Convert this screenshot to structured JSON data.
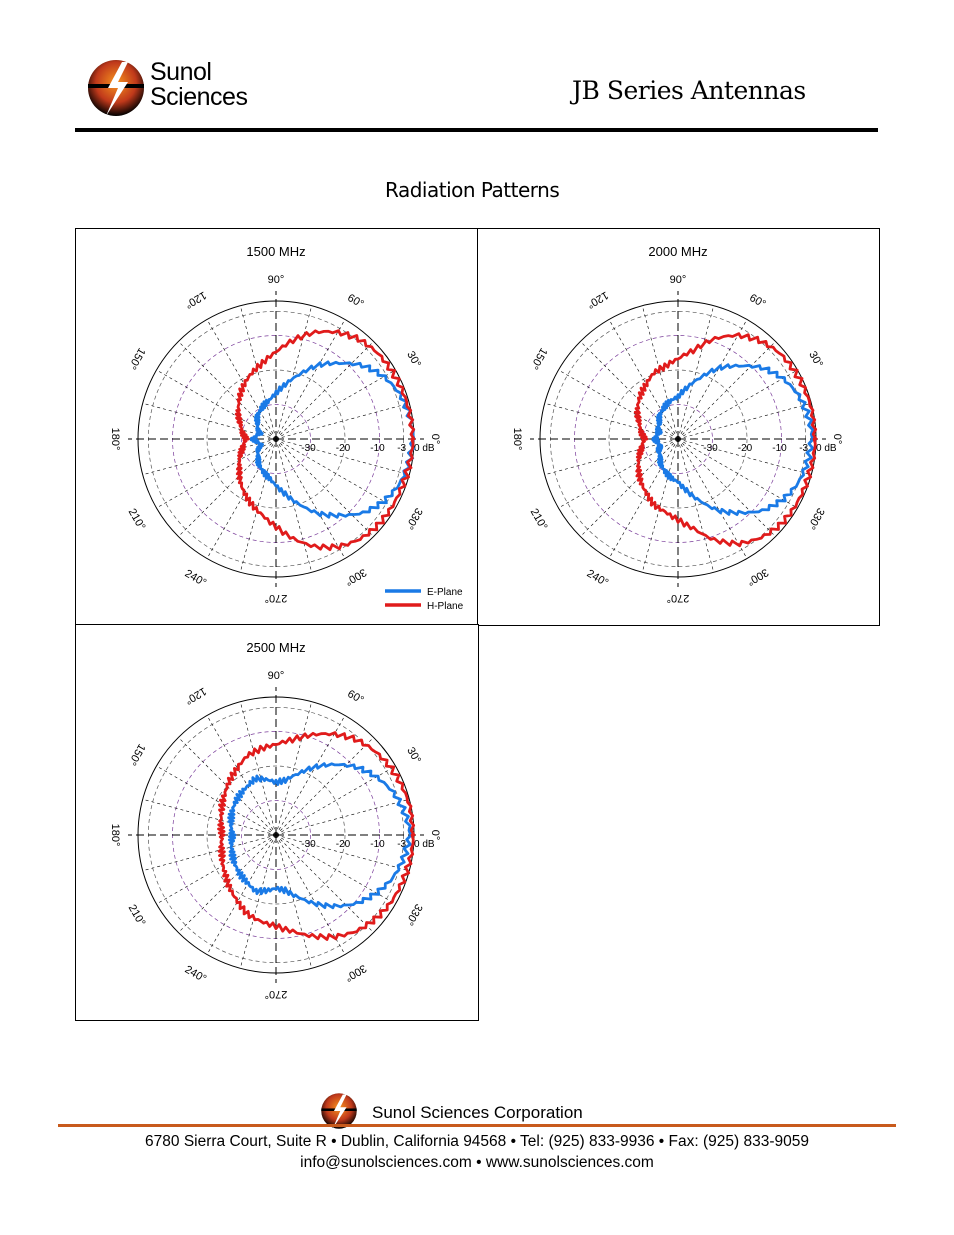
{
  "header": {
    "logo_line1": "Sunol",
    "logo_line2": "Sciences",
    "doc_title": "JB Series Antennas",
    "section_title": "Radiation Patterns"
  },
  "legend": {
    "e_plane": "E-Plane",
    "h_plane": "H-Plane",
    "e_color": "#1a7ae6",
    "h_color": "#e01b1b"
  },
  "polar_axis": {
    "angle_labels": [
      "0°",
      "30°",
      "60°",
      "90°",
      "120°",
      "150°",
      "180°",
      "210°",
      "240°",
      "270°",
      "300°",
      "330°"
    ],
    "db_labels": [
      "-30",
      "-20",
      "-10",
      "-3",
      "0 dB"
    ]
  },
  "chart_data": [
    {
      "type": "polar",
      "title": "1500 MHz",
      "r_scale": "dB",
      "r_ticks": [
        -30,
        -20,
        -10,
        -3,
        0
      ],
      "r_range": [
        -40,
        0
      ],
      "series": [
        {
          "name": "E-Plane",
          "angles_deg": [
            0,
            10,
            20,
            30,
            40,
            50,
            60,
            70,
            80,
            90,
            100,
            110,
            120,
            140,
            160,
            180,
            200,
            220,
            240,
            250,
            260,
            270,
            280,
            290,
            300,
            310,
            320,
            330,
            340,
            350
          ],
          "values_db": [
            0,
            -0.5,
            -1.5,
            -3.5,
            -6.5,
            -11,
            -15,
            -20,
            -24,
            -27,
            -29,
            -30,
            -31,
            -33,
            -35,
            -33,
            -35,
            -33,
            -31,
            -30,
            -29,
            -27,
            -24,
            -20,
            -15,
            -11,
            -6.5,
            -3.5,
            -1.5,
            -0.5
          ]
        },
        {
          "name": "H-Plane",
          "angles_deg": [
            0,
            10,
            20,
            30,
            40,
            50,
            60,
            70,
            80,
            90,
            100,
            110,
            120,
            140,
            160,
            180,
            200,
            220,
            240,
            250,
            260,
            270,
            280,
            290,
            300,
            310,
            320,
            330,
            340,
            350
          ],
          "values_db": [
            0,
            -0.3,
            -0.5,
            -0.7,
            -1,
            -2,
            -4,
            -7,
            -11,
            -15,
            -18,
            -20,
            -22,
            -26,
            -29,
            -31,
            -29,
            -26,
            -22,
            -20,
            -18,
            -15,
            -11,
            -7,
            -4,
            -2,
            -1,
            -0.7,
            -0.5,
            -0.3
          ]
        }
      ]
    },
    {
      "type": "polar",
      "title": "2000 MHz",
      "r_scale": "dB",
      "r_ticks": [
        -30,
        -20,
        -10,
        -3,
        0
      ],
      "r_range": [
        -40,
        0
      ],
      "series": [
        {
          "name": "E-Plane",
          "angles_deg": [
            0,
            10,
            20,
            30,
            40,
            50,
            60,
            70,
            80,
            90,
            100,
            110,
            120,
            140,
            160,
            180,
            200,
            220,
            240,
            250,
            260,
            270,
            280,
            290,
            300,
            310,
            320,
            330,
            340,
            350
          ],
          "values_db": [
            -1,
            -1.5,
            -2.5,
            -4.5,
            -7.5,
            -12,
            -16,
            -21,
            -25,
            -28,
            -29,
            -30,
            -31,
            -33,
            -34,
            -33,
            -34,
            -33,
            -31,
            -30,
            -29,
            -28,
            -25,
            -21,
            -16,
            -12,
            -7.5,
            -4.5,
            -2.5,
            -1.5
          ]
        },
        {
          "name": "H-Plane",
          "angles_deg": [
            0,
            10,
            20,
            30,
            40,
            50,
            60,
            70,
            80,
            90,
            100,
            110,
            120,
            140,
            160,
            180,
            200,
            220,
            240,
            250,
            260,
            270,
            280,
            290,
            300,
            310,
            320,
            330,
            340,
            350
          ],
          "values_db": [
            0,
            0,
            -0.3,
            -0.5,
            -1,
            -2.5,
            -5,
            -9,
            -14,
            -17,
            -19,
            -20,
            -22,
            -25,
            -28,
            -30,
            -28,
            -25,
            -22,
            -20,
            -19,
            -17,
            -14,
            -9,
            -5,
            -2.5,
            -1,
            -0.5,
            -0.3,
            0
          ]
        }
      ]
    },
    {
      "type": "polar",
      "title": "2500 MHz",
      "r_scale": "dB",
      "r_ticks": [
        -30,
        -20,
        -10,
        -3,
        0
      ],
      "r_range": [
        -40,
        0
      ],
      "series": [
        {
          "name": "E-Plane",
          "angles_deg": [
            0,
            10,
            20,
            30,
            40,
            50,
            60,
            70,
            80,
            90,
            100,
            110,
            120,
            140,
            160,
            180,
            200,
            220,
            240,
            250,
            260,
            270,
            280,
            290,
            300,
            310,
            320,
            330,
            340,
            350
          ],
          "values_db": [
            -1,
            -2,
            -3.5,
            -6,
            -9,
            -13,
            -17,
            -21,
            -24,
            -25,
            -24,
            -23,
            -24,
            -25,
            -26,
            -27,
            -26,
            -25,
            -24,
            -23,
            -24,
            -25,
            -24,
            -21,
            -17,
            -13,
            -9,
            -6,
            -3.5,
            -2
          ]
        },
        {
          "name": "H-Plane",
          "angles_deg": [
            0,
            10,
            20,
            30,
            40,
            50,
            60,
            70,
            80,
            90,
            100,
            110,
            120,
            140,
            160,
            180,
            200,
            220,
            240,
            250,
            260,
            270,
            280,
            290,
            300,
            310,
            320,
            330,
            340,
            350
          ],
          "values_db": [
            0,
            0,
            -0.5,
            -1,
            -2,
            -3.5,
            -6,
            -9,
            -12,
            -14,
            -15,
            -16,
            -18,
            -21,
            -23,
            -24,
            -23,
            -21,
            -18,
            -16,
            -15,
            -14,
            -12,
            -9,
            -6,
            -3.5,
            -2,
            -1,
            -0.5,
            0
          ]
        }
      ]
    }
  ],
  "footer": {
    "company": "Sunol Sciences Corporation",
    "address_line": "6780 Sierra Court, Suite R  •  Dublin, California 94568  •  Tel: (925) 833-9936  •  Fax: (925) 833-9059",
    "contact_line": "info@sunolsciences.com  •  www.sunolsciences.com"
  }
}
